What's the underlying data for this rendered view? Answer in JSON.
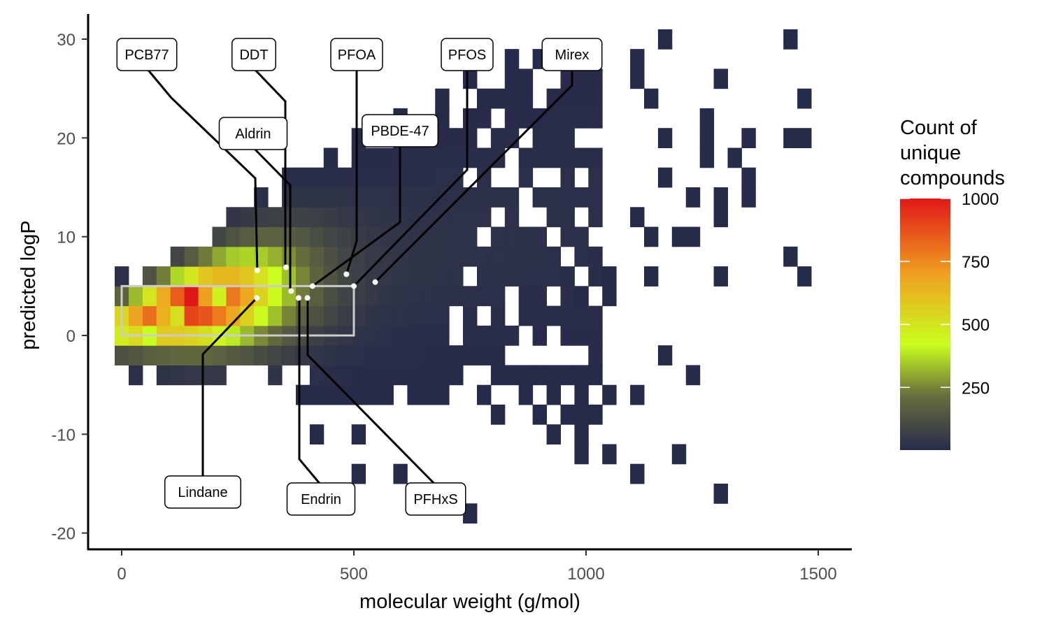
{
  "colors": {
    "scale": [
      "#272b4a",
      "#6a6f3c",
      "#c9ff1e",
      "#f0a020",
      "#e01818"
    ],
    "highlight_box": "#cccccc",
    "axis": "#000000"
  },
  "chart_data": {
    "type": "heatmap",
    "xlabel": "molecular weight (g/mol)",
    "ylabel": "predicted logP",
    "x_ticks": [
      0,
      500,
      1000,
      1500
    ],
    "y_ticks": [
      -20,
      -10,
      0,
      10,
      20,
      30
    ],
    "xlim": [
      -75,
      1570
    ],
    "ylim": [
      -22,
      32.5
    ],
    "bin_width_x": 30,
    "bin_height_y": 2,
    "legend": {
      "title_lines": [
        "Count of",
        "unique",
        "compounds"
      ],
      "ticks": [
        250,
        500,
        750,
        1000
      ],
      "range": [
        1,
        1000
      ],
      "position": "right"
    },
    "highlight_box": {
      "x": [
        0,
        500
      ],
      "y": [
        0,
        5
      ]
    },
    "hot_cells": [
      {
        "x": 120,
        "y": 4,
        "count": 850
      },
      {
        "x": 150,
        "y": 4,
        "count": 1000
      },
      {
        "x": 150,
        "y": 2,
        "count": 900
      },
      {
        "x": 90,
        "y": 2,
        "count": 650
      },
      {
        "x": 180,
        "y": 4,
        "count": 700
      },
      {
        "x": 120,
        "y": 2,
        "count": 520
      },
      {
        "x": 210,
        "y": 4,
        "count": 460
      },
      {
        "x": 60,
        "y": 0,
        "count": 420
      }
    ],
    "sparse_cells": [
      [
        1180,
        29
      ],
      [
        1450,
        29
      ],
      [
        1100,
        27
      ],
      [
        1100,
        25
      ],
      [
        1300,
        25
      ],
      [
        1150,
        23
      ],
      [
        1480,
        23
      ],
      [
        1250,
        21
      ],
      [
        1180,
        19
      ],
      [
        1270,
        19
      ],
      [
        1360,
        19
      ],
      [
        1450,
        19
      ],
      [
        1480,
        19
      ],
      [
        1270,
        17
      ],
      [
        1330,
        17
      ],
      [
        1360,
        15
      ],
      [
        1360,
        13
      ],
      [
        1230,
        13
      ],
      [
        1180,
        15
      ],
      [
        1280,
        13
      ],
      [
        1300,
        11
      ],
      [
        1200,
        9
      ],
      [
        1240,
        9
      ],
      [
        1110,
        11
      ],
      [
        1130,
        9
      ],
      [
        1050,
        5
      ],
      [
        1150,
        5
      ],
      [
        1300,
        5
      ],
      [
        1440,
        7
      ],
      [
        1480,
        5
      ],
      [
        1000,
        3
      ],
      [
        1060,
        3
      ],
      [
        1180,
        -3
      ],
      [
        1240,
        -5
      ],
      [
        1050,
        -7
      ],
      [
        1120,
        -7
      ],
      [
        1030,
        -9
      ],
      [
        1000,
        -11
      ],
      [
        1050,
        -12
      ],
      [
        1200,
        -12
      ],
      [
        980,
        -13
      ],
      [
        1110,
        -15
      ],
      [
        1300,
        -17
      ],
      [
        740,
        -19
      ],
      [
        600,
        -15
      ],
      [
        500,
        -14
      ],
      [
        420,
        -11
      ],
      [
        500,
        -11
      ],
      [
        680,
        -7
      ],
      [
        780,
        -7
      ],
      [
        720,
        -5
      ],
      [
        880,
        -7
      ],
      [
        920,
        -11
      ],
      [
        960,
        -9
      ]
    ],
    "annotations": [
      {
        "label": "PCB77",
        "x": 292,
        "y": 6.6
      },
      {
        "label": "DDT",
        "x": 354,
        "y": 6.9
      },
      {
        "label": "PFOA",
        "x": 484,
        "y": 6.2
      },
      {
        "label": "PFOS",
        "x": 500,
        "y": 5.0
      },
      {
        "label": "Mirex",
        "x": 546,
        "y": 5.4
      },
      {
        "label": "Aldrin",
        "x": 365,
        "y": 4.5
      },
      {
        "label": "PBDE-47",
        "x": 411,
        "y": 5.0
      },
      {
        "label": "Lindane",
        "x": 291,
        "y": 3.8
      },
      {
        "label": "Endrin",
        "x": 381,
        "y": 3.8
      },
      {
        "label": "PFHxS",
        "x": 400,
        "y": 3.8
      }
    ]
  }
}
